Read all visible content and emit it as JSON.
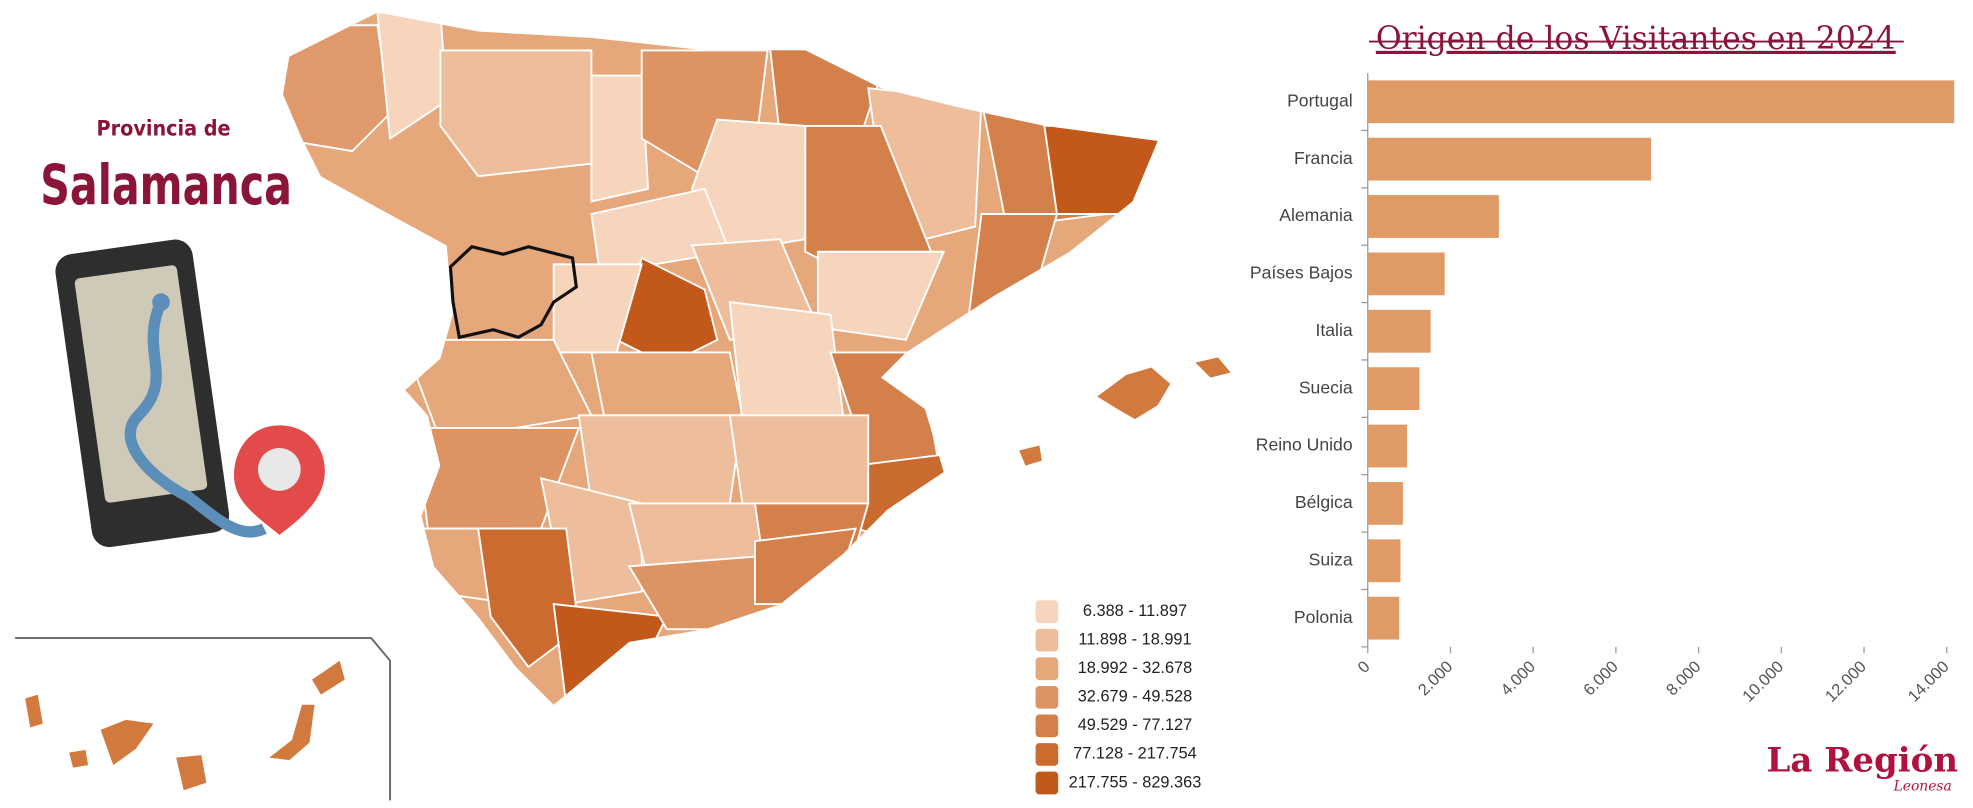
{
  "header": {
    "subtitle": "Provincia de",
    "title": "Salamanca"
  },
  "map": {
    "legend": [
      {
        "label": "6.388  -  11.897",
        "color": "#f6d5bc"
      },
      {
        "label": "11.898  -  18.991",
        "color": "#eebd9b"
      },
      {
        "label": "18.992  -  32.678",
        "color": "#e6a77b"
      },
      {
        "label": "32.679  -  49.528",
        "color": "#dd9462"
      },
      {
        "label": "49.529  -  77.127",
        "color": "#d4804a"
      },
      {
        "label": "77.128  - 217.754",
        "color": "#cb6b30"
      },
      {
        "label": "217.755 - 829.363",
        "color": "#c2581a"
      }
    ]
  },
  "chart_data": {
    "type": "hbar",
    "title": "Origen de los Visitantes en 2024",
    "categories": [
      "Portugal",
      "Francia",
      "Alemania",
      "Países Bajos",
      "Italia",
      "Suecia",
      "Reino Unido",
      "Bélgica",
      "Suiza",
      "Polonia"
    ],
    "values": [
      14180,
      6850,
      3170,
      1860,
      1520,
      1250,
      950,
      850,
      790,
      760
    ],
    "color": "#df9a66",
    "xlim": [
      0,
      14300
    ],
    "xticks": [
      0,
      {
        "value": 2000,
        "label": "2.000"
      },
      {
        "value": 4000,
        "label": "4.000"
      },
      {
        "value": 6000,
        "label": "6.000"
      },
      {
        "value": 8000,
        "label": "8.000"
      },
      {
        "value": 10000,
        "label": "10.000"
      },
      {
        "value": 12000,
        "label": "12.000"
      },
      {
        "value": 14000,
        "label": "14.000"
      }
    ]
  },
  "logo": {
    "name": "La Región",
    "tagline": "Leonesa"
  }
}
